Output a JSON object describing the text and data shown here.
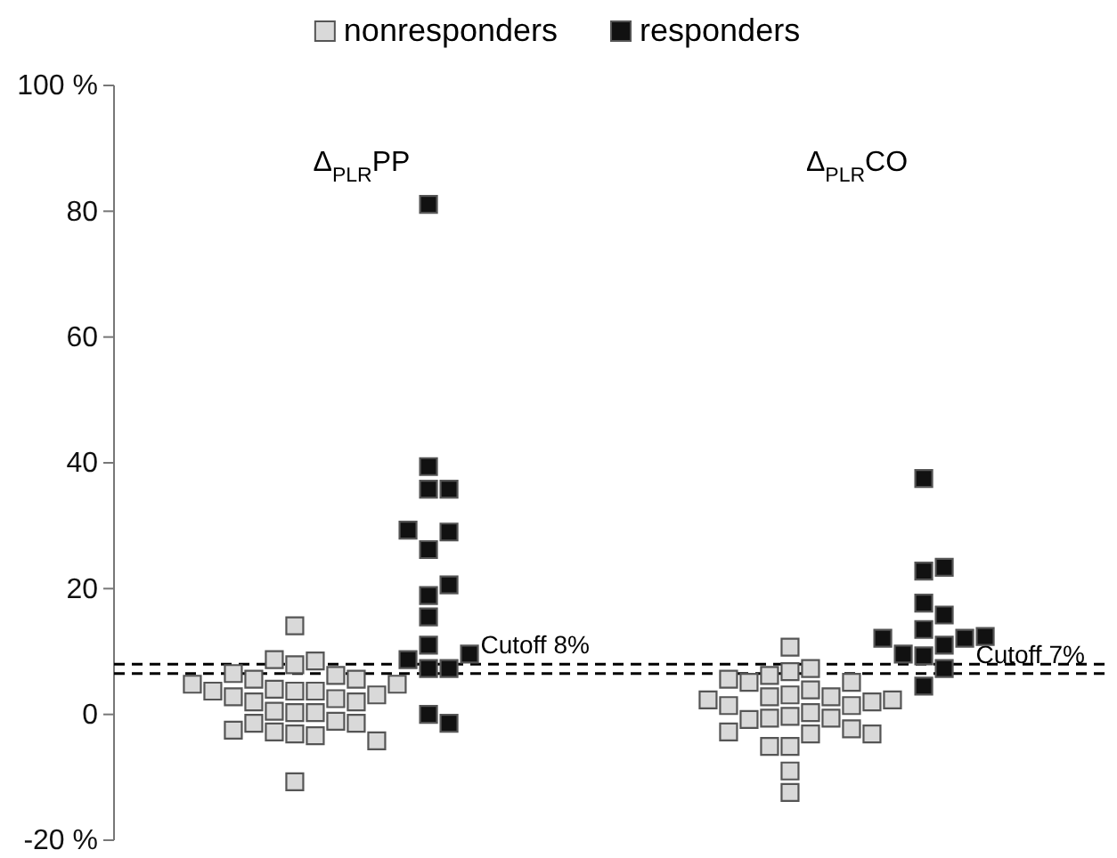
{
  "chart_data": {
    "type": "scatter",
    "marker": "square",
    "legend": "top",
    "categories": [
      "Δ$_{PLR}$PP",
      "Δ$_{PLR}$CO"
    ],
    "ylim": [
      -20,
      100
    ],
    "yticks": [
      {
        "value": -20,
        "label": "-20 %"
      },
      0,
      20,
      40,
      60,
      80,
      {
        "value": 100,
        "label": "100 %"
      }
    ],
    "series": [
      {
        "name": "nonresponders",
        "color": "#d9d9d9",
        "x": [
          "Δ$_{PLR}$PP",
          "Δ$_{PLR}$PP",
          "Δ$_{PLR}$PP",
          "Δ$_{PLR}$PP",
          "Δ$_{PLR}$PP",
          "Δ$_{PLR}$PP",
          "Δ$_{PLR}$PP",
          "Δ$_{PLR}$PP",
          "Δ$_{PLR}$PP",
          "Δ$_{PLR}$PP",
          "Δ$_{PLR}$PP",
          "Δ$_{PLR}$PP",
          "Δ$_{PLR}$PP",
          "Δ$_{PLR}$PP",
          "Δ$_{PLR}$PP",
          "Δ$_{PLR}$PP",
          "Δ$_{PLR}$PP",
          "Δ$_{PLR}$PP",
          "Δ$_{PLR}$PP",
          "Δ$_{PLR}$PP",
          "Δ$_{PLR}$PP",
          "Δ$_{PLR}$PP",
          "Δ$_{PLR}$PP",
          "Δ$_{PLR}$PP",
          "Δ$_{PLR}$PP",
          "Δ$_{PLR}$PP",
          "Δ$_{PLR}$PP",
          "Δ$_{PLR}$PP",
          "Δ$_{PLR}$PP",
          "Δ$_{PLR}$PP",
          "Δ$_{PLR}$PP",
          "Δ$_{PLR}$CO",
          "Δ$_{PLR}$CO",
          "Δ$_{PLR}$CO",
          "Δ$_{PLR}$CO",
          "Δ$_{PLR}$CO",
          "Δ$_{PLR}$CO",
          "Δ$_{PLR}$CO",
          "Δ$_{PLR}$CO",
          "Δ$_{PLR}$CO",
          "Δ$_{PLR}$CO",
          "Δ$_{PLR}$CO",
          "Δ$_{PLR}$CO",
          "Δ$_{PLR}$CO",
          "Δ$_{PLR}$CO",
          "Δ$_{PLR}$CO",
          "Δ$_{PLR}$CO",
          "Δ$_{PLR}$CO",
          "Δ$_{PLR}$CO",
          "Δ$_{PLR}$CO",
          "Δ$_{PLR}$CO",
          "Δ$_{PLR}$CO",
          "Δ$_{PLR}$CO",
          "Δ$_{PLR}$CO",
          "Δ$_{PLR}$CO",
          "Δ$_{PLR}$CO",
          "Δ$_{PLR}$CO",
          "Δ$_{PLR}$CO",
          "Δ$_{PLR}$CO",
          "Δ$_{PLR}$CO"
        ],
        "values": [
          14.1,
          7.9,
          8.5,
          8.7,
          5.6,
          5.6,
          6.2,
          6.5,
          3.7,
          3.7,
          4.8,
          4.8,
          3.1,
          3.7,
          4,
          2,
          2,
          2.5,
          2.8,
          0.3,
          0.3,
          0.5,
          -1.4,
          -1.4,
          -1.1,
          -2.8,
          -3.1,
          -2.5,
          -3.4,
          -4.2,
          -10.7,
          10.7,
          6.2,
          6.8,
          7.3,
          3.9,
          5.1,
          5.1,
          5.6,
          1.4,
          1.4,
          2,
          2.3,
          2.3,
          2.8,
          2.8,
          3.1,
          -0.8,
          -0.6,
          -0.6,
          -0.3,
          0.3,
          -2.8,
          -3.1,
          -3.1,
          -2.3,
          -5.1,
          -5.1,
          -9,
          -12.4
        ]
      },
      {
        "name": "responders",
        "color": "#111111",
        "x": [
          "Δ$_{PLR}$PP",
          "Δ$_{PLR}$PP",
          "Δ$_{PLR}$PP",
          "Δ$_{PLR}$PP",
          "Δ$_{PLR}$PP",
          "Δ$_{PLR}$PP",
          "Δ$_{PLR}$PP",
          "Δ$_{PLR}$PP",
          "Δ$_{PLR}$PP",
          "Δ$_{PLR}$PP",
          "Δ$_{PLR}$PP",
          "Δ$_{PLR}$PP",
          "Δ$_{PLR}$PP",
          "Δ$_{PLR}$PP",
          "Δ$_{PLR}$PP",
          "Δ$_{PLR}$PP",
          "Δ$_{PLR}$PP",
          "Δ$_{PLR}$CO",
          "Δ$_{PLR}$CO",
          "Δ$_{PLR}$CO",
          "Δ$_{PLR}$CO",
          "Δ$_{PLR}$CO",
          "Δ$_{PLR}$CO",
          "Δ$_{PLR}$CO",
          "Δ$_{PLR}$CO",
          "Δ$_{PLR}$CO",
          "Δ$_{PLR}$CO",
          "Δ$_{PLR}$CO",
          "Δ$_{PLR}$CO",
          "Δ$_{PLR}$CO",
          "Δ$_{PLR}$CO"
        ],
        "values": [
          81.1,
          39.4,
          35.8,
          35.8,
          29,
          29.3,
          26.2,
          20.6,
          18.9,
          15.5,
          11,
          7.3,
          7.3,
          8.7,
          9.6,
          -1.4,
          0,
          37.5,
          22.8,
          23.4,
          17.7,
          15.8,
          11,
          12.1,
          13.5,
          12.1,
          12.4,
          9.6,
          9.3,
          7.3,
          4.5
        ]
      }
    ],
    "ref_lines": [
      {
        "axis": "y",
        "value": 8,
        "label": "Cutoff 8%",
        "line_style": "dashed"
      },
      {
        "axis": "y",
        "value": 6.5,
        "label": "Cutoff 7%",
        "line_style": "dashed"
      }
    ]
  }
}
